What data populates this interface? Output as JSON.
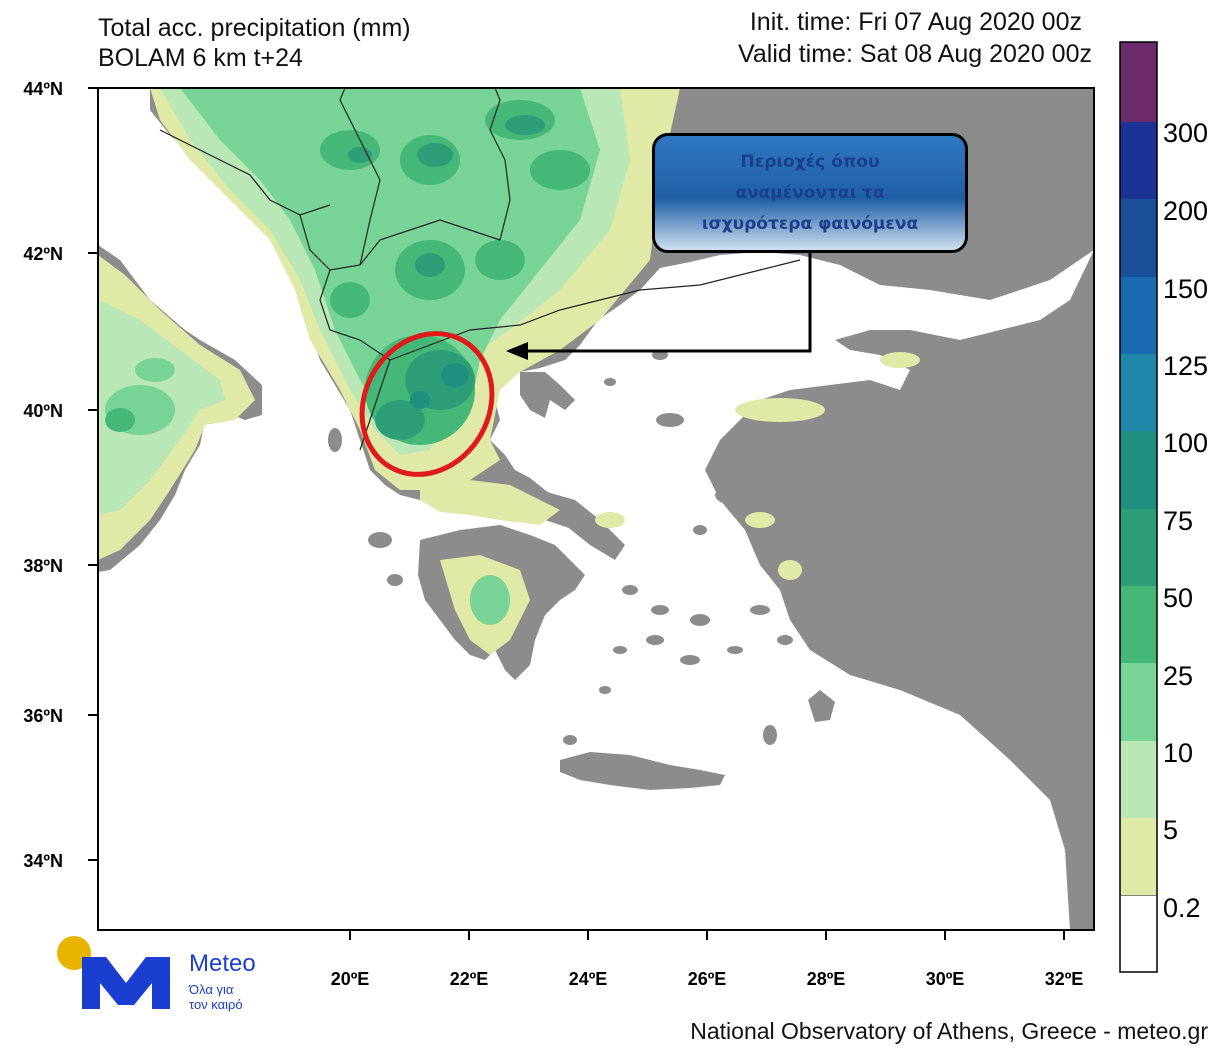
{
  "header": {
    "title_line1": "Total acc. precipitation (mm)",
    "title_line2": "BOLAM 6 km t+24",
    "init_time": "Init. time: Fri 07 Aug 2020 00z",
    "valid_time": "Valid time: Sat 08 Aug 2020 00z"
  },
  "map": {
    "lat_labels": [
      "44ºN",
      "42ºN",
      "40ºN",
      "38ºN",
      "36ºN",
      "34ºN"
    ],
    "lon_labels": [
      "20ºE",
      "22ºE",
      "24ºE",
      "26ºE",
      "28ºE",
      "30ºE",
      "32ºE"
    ],
    "land_color": "#8c8c8c",
    "sea_color": "#ffffff"
  },
  "colorbar": {
    "labels": [
      "0.2",
      "5",
      "10",
      "25",
      "50",
      "75",
      "100",
      "125",
      "150",
      "200",
      "300"
    ],
    "colors": [
      "#ffffff",
      "#e1e9a6",
      "#b9e8b6",
      "#77d496",
      "#45b878",
      "#2d9e78",
      "#1f8f80",
      "#1e87aa",
      "#1a6ab2",
      "#1a4e98",
      "#1c3396",
      "#6b2a6a"
    ]
  },
  "callout": {
    "text": "Περιοχές όπου\nαναμένονται τα\nισχυρότερα φαινόμενα"
  },
  "logo": {
    "name": "Meteo",
    "slogan": "Όλα για\nτον καιρό"
  },
  "footer": {
    "credit": "National Observatory of Athens, Greece - meteo.gr"
  }
}
